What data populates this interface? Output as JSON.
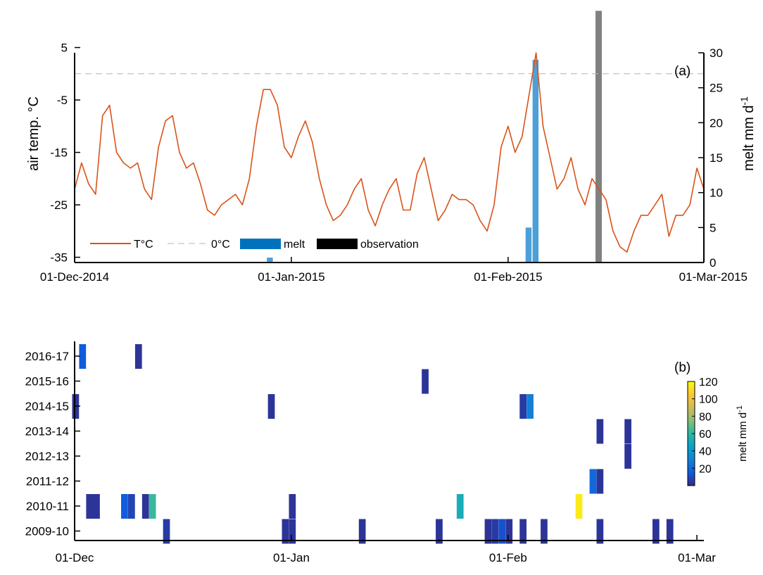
{
  "chart_data": [
    {
      "panel_label": "(a)",
      "type": "line",
      "left_axis_label": "air temp. °C",
      "right_axis_label_main": "melt mm d",
      "right_axis_label_exp": "-1",
      "x_range": [
        "2014-12-01",
        "2015-03-01"
      ],
      "x_ticks": [
        {
          "date": "2014-12-01",
          "label": "01-Dec-2014"
        },
        {
          "date": "2015-01-01",
          "label": "01-Jan-2015"
        },
        {
          "date": "2015-02-01",
          "label": "01-Feb-2015"
        },
        {
          "date": "2015-03-01",
          "label": "01-Mar-2015"
        }
      ],
      "ylim_left": [
        -36,
        4
      ],
      "yticks_left": [
        {
          "value": 5,
          "label": "5"
        },
        {
          "value": -5,
          "label": "-5"
        },
        {
          "value": -15,
          "label": "-15"
        },
        {
          "value": -25,
          "label": "-25"
        },
        {
          "value": -35,
          "label": "-35"
        }
      ],
      "ylim_right": [
        0,
        30
      ],
      "yticks_right": [
        {
          "value": 0,
          "label": "0"
        },
        {
          "value": 5,
          "label": "5"
        },
        {
          "value": 10,
          "label": "10"
        },
        {
          "value": 15,
          "label": "15"
        },
        {
          "value": 20,
          "label": "20"
        },
        {
          "value": 25,
          "label": "25"
        },
        {
          "value": 30,
          "label": "30"
        }
      ],
      "zero_line_c": 0,
      "temperature_series": {
        "name": "T°C",
        "color": "#d95319",
        "points": [
          [
            "2014-12-01",
            -22
          ],
          [
            "2014-12-02",
            -17
          ],
          [
            "2014-12-03",
            -21
          ],
          [
            "2014-12-04",
            -23
          ],
          [
            "2014-12-05",
            -8
          ],
          [
            "2014-12-06",
            -6
          ],
          [
            "2014-12-07",
            -15
          ],
          [
            "2014-12-08",
            -17
          ],
          [
            "2014-12-09",
            -18
          ],
          [
            "2014-12-10",
            -17
          ],
          [
            "2014-12-11",
            -22
          ],
          [
            "2014-12-12",
            -24
          ],
          [
            "2014-12-13",
            -14
          ],
          [
            "2014-12-14",
            -9
          ],
          [
            "2014-12-15",
            -8
          ],
          [
            "2014-12-16",
            -15
          ],
          [
            "2014-12-17",
            -18
          ],
          [
            "2014-12-18",
            -17
          ],
          [
            "2014-12-19",
            -21
          ],
          [
            "2014-12-20",
            -26
          ],
          [
            "2014-12-21",
            -27
          ],
          [
            "2014-12-22",
            -25
          ],
          [
            "2014-12-23",
            -24
          ],
          [
            "2014-12-24",
            -23
          ],
          [
            "2014-12-25",
            -25
          ],
          [
            "2014-12-26",
            -20
          ],
          [
            "2014-12-27",
            -10
          ],
          [
            "2014-12-28",
            -3
          ],
          [
            "2014-12-29",
            -3
          ],
          [
            "2014-12-30",
            -6
          ],
          [
            "2014-12-31",
            -14
          ],
          [
            "2015-01-01",
            -16
          ],
          [
            "2015-01-02",
            -12
          ],
          [
            "2015-01-03",
            -9
          ],
          [
            "2015-01-04",
            -13
          ],
          [
            "2015-01-05",
            -20
          ],
          [
            "2015-01-06",
            -25
          ],
          [
            "2015-01-07",
            -28
          ],
          [
            "2015-01-08",
            -27
          ],
          [
            "2015-01-09",
            -25
          ],
          [
            "2015-01-10",
            -22
          ],
          [
            "2015-01-11",
            -20
          ],
          [
            "2015-01-12",
            -26
          ],
          [
            "2015-01-13",
            -29
          ],
          [
            "2015-01-14",
            -25
          ],
          [
            "2015-01-15",
            -22
          ],
          [
            "2015-01-16",
            -20
          ],
          [
            "2015-01-17",
            -26
          ],
          [
            "2015-01-18",
            -26
          ],
          [
            "2015-01-19",
            -19
          ],
          [
            "2015-01-20",
            -16
          ],
          [
            "2015-01-21",
            -22
          ],
          [
            "2015-01-22",
            -28
          ],
          [
            "2015-01-23",
            -26
          ],
          [
            "2015-01-24",
            -23
          ],
          [
            "2015-01-25",
            -24
          ],
          [
            "2015-01-26",
            -24
          ],
          [
            "2015-01-27",
            -25
          ],
          [
            "2015-01-28",
            -28
          ],
          [
            "2015-01-29",
            -30
          ],
          [
            "2015-01-30",
            -25
          ],
          [
            "2015-01-31",
            -14
          ],
          [
            "2015-02-01",
            -10
          ],
          [
            "2015-02-02",
            -15
          ],
          [
            "2015-02-03",
            -12
          ],
          [
            "2015-02-04",
            -4
          ],
          [
            "2015-02-05",
            4
          ],
          [
            "2015-02-06",
            -10
          ],
          [
            "2015-02-07",
            -16
          ],
          [
            "2015-02-08",
            -22
          ],
          [
            "2015-02-09",
            -20
          ],
          [
            "2015-02-10",
            -16
          ],
          [
            "2015-02-11",
            -22
          ],
          [
            "2015-02-12",
            -25
          ],
          [
            "2015-02-13",
            -20
          ],
          [
            "2015-02-14",
            -22
          ],
          [
            "2015-02-15",
            -24
          ],
          [
            "2015-02-16",
            -30
          ],
          [
            "2015-02-17",
            -33
          ],
          [
            "2015-02-18",
            -34
          ],
          [
            "2015-02-19",
            -30
          ],
          [
            "2015-02-20",
            -27
          ],
          [
            "2015-02-21",
            -27
          ],
          [
            "2015-02-22",
            -25
          ],
          [
            "2015-02-23",
            -23
          ],
          [
            "2015-02-24",
            -31
          ],
          [
            "2015-02-25",
            -27
          ],
          [
            "2015-02-26",
            -27
          ],
          [
            "2015-02-27",
            -25
          ],
          [
            "2015-02-28",
            -18
          ],
          [
            "2015-03-01",
            -22
          ]
        ]
      },
      "zero_line_series": {
        "name": "0°C",
        "color": "#b4b4b4"
      },
      "melt_series": {
        "name": "melt",
        "color": "#4d9fd8",
        "legend_color": "#0072bd",
        "bars": [
          {
            "date": "2014-12-29",
            "value": 0.7
          },
          {
            "date": "2015-02-04",
            "value": 5
          },
          {
            "date": "2015-02-05",
            "value": 29
          }
        ]
      },
      "observation_series": {
        "name": "observation",
        "color": "#808080",
        "legend_color": "#000000",
        "bars": [
          {
            "date": "2015-02-14",
            "value": 36
          }
        ]
      },
      "legend": "bottom-left"
    },
    {
      "panel_label": "(b)",
      "type": "heatmap",
      "x_range_days": [
        0,
        90
      ],
      "x_ticks": [
        {
          "day": 0,
          "label": "01-Dec"
        },
        {
          "day": 31,
          "label": "01-Jan"
        },
        {
          "day": 62,
          "label": "01-Feb"
        },
        {
          "day": 89,
          "label": "01-Mar"
        }
      ],
      "rows": [
        "2016-17",
        "2015-16",
        "2014-15",
        "2013-14",
        "2012-13",
        "2011-12",
        "2010-11",
        "2009-10"
      ],
      "colorbar": {
        "label_main": "melt mm d",
        "label_exp": "-1",
        "range": [
          0,
          120
        ],
        "ticks": [
          {
            "value": 20,
            "label": "20"
          },
          {
            "value": 40,
            "label": "40"
          },
          {
            "value": 60,
            "label": "60"
          },
          {
            "value": 80,
            "label": "80"
          },
          {
            "value": 100,
            "label": "100"
          },
          {
            "value": 120,
            "label": "120"
          }
        ],
        "colors": [
          "#352a87",
          "#0f5cdd",
          "#1481d6",
          "#06a4ca",
          "#2eb7a4",
          "#87bf77",
          "#d1bb59",
          "#fec832",
          "#f9fb0e"
        ]
      },
      "cells": [
        {
          "season": "2016-17",
          "day": 1,
          "span": 1,
          "value": 15
        },
        {
          "season": "2016-17",
          "day": 9,
          "span": 1,
          "value": 3
        },
        {
          "season": "2015-16",
          "day": 50,
          "span": 1,
          "value": 3
        },
        {
          "season": "2014-15",
          "day": 0,
          "span": 1,
          "value": 3
        },
        {
          "season": "2014-15",
          "day": 28,
          "span": 1,
          "value": 3
        },
        {
          "season": "2014-15",
          "day": 64,
          "span": 1,
          "value": 5
        },
        {
          "season": "2014-15",
          "day": 65,
          "span": 1,
          "value": 29
        },
        {
          "season": "2013-14",
          "day": 75,
          "span": 1,
          "value": 3
        },
        {
          "season": "2013-14",
          "day": 79,
          "span": 1,
          "value": 3
        },
        {
          "season": "2012-13",
          "day": 79,
          "span": 1,
          "value": 3
        },
        {
          "season": "2011-12",
          "day": 74,
          "span": 1,
          "value": 20
        },
        {
          "season": "2011-12",
          "day": 75,
          "span": 1,
          "value": 3
        },
        {
          "season": "2010-11",
          "day": 2,
          "span": 2,
          "value": 3
        },
        {
          "season": "2010-11",
          "day": 7,
          "span": 1,
          "value": 15
        },
        {
          "season": "2010-11",
          "day": 8,
          "span": 1,
          "value": 8
        },
        {
          "season": "2010-11",
          "day": 10,
          "span": 1,
          "value": 3
        },
        {
          "season": "2010-11",
          "day": 11,
          "span": 1,
          "value": 62
        },
        {
          "season": "2010-11",
          "day": 31,
          "span": 1,
          "value": 3
        },
        {
          "season": "2010-11",
          "day": 55,
          "span": 1,
          "value": 52
        },
        {
          "season": "2010-11",
          "day": 72,
          "span": 1,
          "value": 115
        },
        {
          "season": "2009-10",
          "day": 13,
          "span": 1,
          "value": 5
        },
        {
          "season": "2009-10",
          "day": 30,
          "span": 1,
          "value": 3
        },
        {
          "season": "2009-10",
          "day": 31,
          "span": 1,
          "value": 3
        },
        {
          "season": "2009-10",
          "day": 41,
          "span": 1,
          "value": 3
        },
        {
          "season": "2009-10",
          "day": 52,
          "span": 1,
          "value": 3
        },
        {
          "season": "2009-10",
          "day": 59,
          "span": 1,
          "value": 3
        },
        {
          "season": "2009-10",
          "day": 60,
          "span": 1,
          "value": 5
        },
        {
          "season": "2009-10",
          "day": 61,
          "span": 1,
          "value": 12
        },
        {
          "season": "2009-10",
          "day": 62,
          "span": 1,
          "value": 3
        },
        {
          "season": "2009-10",
          "day": 64,
          "span": 1,
          "value": 3
        },
        {
          "season": "2009-10",
          "day": 67,
          "span": 1,
          "value": 3
        },
        {
          "season": "2009-10",
          "day": 75,
          "span": 1,
          "value": 3
        },
        {
          "season": "2009-10",
          "day": 83,
          "span": 1,
          "value": 3
        },
        {
          "season": "2009-10",
          "day": 85,
          "span": 1,
          "value": 3
        }
      ]
    }
  ]
}
